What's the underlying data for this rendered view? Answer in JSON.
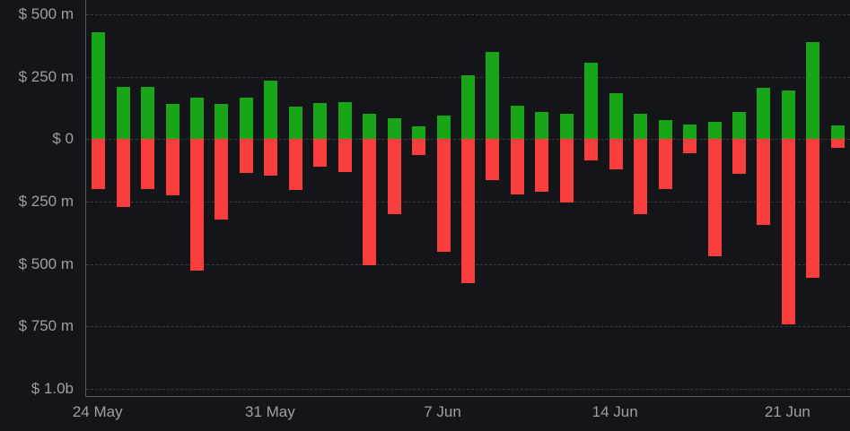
{
  "chart_data": {
    "type": "bar",
    "title": "",
    "unit": "USD",
    "ylim": [
      -1000,
      500
    ],
    "grid": "horizontal-dashed",
    "legend": "none",
    "categories": [
      "24 May",
      "25 May",
      "26 May",
      "27 May",
      "28 May",
      "29 May",
      "30 May",
      "31 May",
      "1 Jun",
      "2 Jun",
      "3 Jun",
      "4 Jun",
      "5 Jun",
      "6 Jun",
      "7 Jun",
      "8 Jun",
      "9 Jun",
      "10 Jun",
      "11 Jun",
      "12 Jun",
      "13 Jun",
      "14 Jun",
      "15 Jun",
      "16 Jun",
      "17 Jun",
      "18 Jun",
      "19 Jun",
      "20 Jun",
      "21 Jun",
      "22 Jun",
      "23 Jun"
    ],
    "x_tick_labels": [
      {
        "index": 0,
        "label": "24 May"
      },
      {
        "index": 7,
        "label": "31 May"
      },
      {
        "index": 14,
        "label": "7 Jun"
      },
      {
        "index": 21,
        "label": "14 Jun"
      },
      {
        "index": 28,
        "label": "21 Jun"
      }
    ],
    "y_ticks": [
      {
        "value": 500,
        "label": "$ 500 m"
      },
      {
        "value": 250,
        "label": "$ 250 m"
      },
      {
        "value": 0,
        "label": "$ 0"
      },
      {
        "value": -250,
        "label": "$ 250 m"
      },
      {
        "value": -500,
        "label": "$ 500 m"
      },
      {
        "value": -750,
        "label": "$ 750 m"
      },
      {
        "value": -1000,
        "label": "$ 1.0b"
      }
    ],
    "series": [
      {
        "name": "positive",
        "color": "#18a518",
        "values": [
          430,
          210,
          210,
          140,
          165,
          140,
          165,
          235,
          130,
          145,
          150,
          100,
          85,
          50,
          95,
          255,
          350,
          135,
          110,
          100,
          305,
          185,
          100,
          75,
          60,
          70,
          110,
          205,
          195,
          390,
          55
        ]
      },
      {
        "name": "negative",
        "color": "#fa3d3d",
        "values": [
          -200,
          -270,
          -200,
          -225,
          -525,
          -320,
          -135,
          -145,
          -205,
          -110,
          -130,
          -505,
          -300,
          -65,
          -450,
          -575,
          -165,
          -220,
          -210,
          -255,
          -85,
          -120,
          -300,
          -200,
          -55,
          -470,
          -140,
          -345,
          -740,
          -555,
          -35
        ]
      }
    ]
  },
  "colors": {
    "background": "#141519",
    "positive": "#18a518",
    "negative": "#fa3d3d",
    "gridline": "#3a3b3f",
    "axis_line": "#54565b",
    "tick_text": "#9e9fa3"
  }
}
